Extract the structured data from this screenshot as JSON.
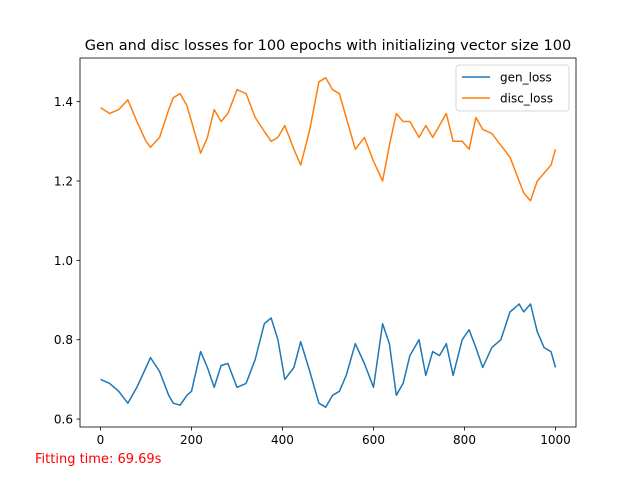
{
  "footer": {
    "fitting_time": "Fitting time: 69.69s",
    "color": "#ff0000"
  },
  "chart_data": {
    "type": "line",
    "title": "Gen and disc losses for 100 epochs with initializing vector size 100",
    "xlabel": "",
    "ylabel": "",
    "xlim": [
      -45,
      1045
    ],
    "ylim": [
      0.58,
      1.51
    ],
    "xticks": [
      0,
      200,
      400,
      600,
      800,
      1000
    ],
    "yticks": [
      0.6,
      0.8,
      1.0,
      1.2,
      1.4
    ],
    "xtick_labels": [
      "0",
      "200",
      "400",
      "600",
      "800",
      "1000"
    ],
    "ytick_labels": [
      "0.6",
      "0.8",
      "1.0",
      "1.2",
      "1.4"
    ],
    "grid": false,
    "legend_position": "top-right",
    "series": [
      {
        "name": "gen_loss",
        "color": "#1f77b4",
        "x": [
          0,
          20,
          40,
          60,
          80,
          100,
          110,
          130,
          150,
          160,
          175,
          190,
          200,
          220,
          235,
          250,
          265,
          280,
          300,
          320,
          340,
          360,
          375,
          390,
          405,
          425,
          440,
          460,
          480,
          495,
          510,
          525,
          540,
          560,
          580,
          600,
          620,
          635,
          650,
          665,
          680,
          700,
          715,
          730,
          745,
          760,
          775,
          795,
          810,
          825,
          840,
          860,
          880,
          900,
          910,
          920,
          930,
          945,
          960,
          975,
          990,
          1000
        ],
        "y": [
          0.7,
          0.69,
          0.67,
          0.64,
          0.68,
          0.73,
          0.755,
          0.72,
          0.66,
          0.64,
          0.635,
          0.66,
          0.67,
          0.77,
          0.73,
          0.68,
          0.735,
          0.74,
          0.68,
          0.69,
          0.75,
          0.84,
          0.855,
          0.8,
          0.7,
          0.73,
          0.795,
          0.72,
          0.64,
          0.63,
          0.66,
          0.67,
          0.71,
          0.79,
          0.74,
          0.68,
          0.84,
          0.79,
          0.66,
          0.69,
          0.76,
          0.8,
          0.71,
          0.77,
          0.76,
          0.79,
          0.71,
          0.8,
          0.825,
          0.78,
          0.73,
          0.78,
          0.8,
          0.87,
          0.88,
          0.89,
          0.87,
          0.89,
          0.82,
          0.78,
          0.77,
          0.73
        ]
      },
      {
        "name": "disc_loss",
        "color": "#ff7f0e",
        "x": [
          0,
          20,
          40,
          60,
          80,
          100,
          110,
          130,
          150,
          160,
          175,
          190,
          200,
          220,
          235,
          250,
          265,
          280,
          300,
          320,
          340,
          360,
          375,
          390,
          405,
          425,
          440,
          460,
          480,
          495,
          510,
          525,
          540,
          560,
          580,
          600,
          620,
          635,
          650,
          665,
          680,
          700,
          715,
          730,
          745,
          760,
          775,
          795,
          810,
          825,
          840,
          860,
          880,
          900,
          910,
          920,
          930,
          945,
          960,
          975,
          990,
          1000
        ],
        "y": [
          1.385,
          1.37,
          1.38,
          1.405,
          1.35,
          1.3,
          1.285,
          1.31,
          1.38,
          1.41,
          1.42,
          1.39,
          1.35,
          1.27,
          1.31,
          1.38,
          1.35,
          1.37,
          1.43,
          1.42,
          1.36,
          1.325,
          1.3,
          1.31,
          1.34,
          1.28,
          1.24,
          1.33,
          1.45,
          1.46,
          1.43,
          1.42,
          1.36,
          1.28,
          1.31,
          1.25,
          1.2,
          1.29,
          1.37,
          1.35,
          1.35,
          1.31,
          1.34,
          1.31,
          1.34,
          1.37,
          1.3,
          1.3,
          1.28,
          1.36,
          1.33,
          1.32,
          1.29,
          1.26,
          1.23,
          1.2,
          1.17,
          1.15,
          1.2,
          1.22,
          1.24,
          1.28
        ]
      }
    ]
  }
}
